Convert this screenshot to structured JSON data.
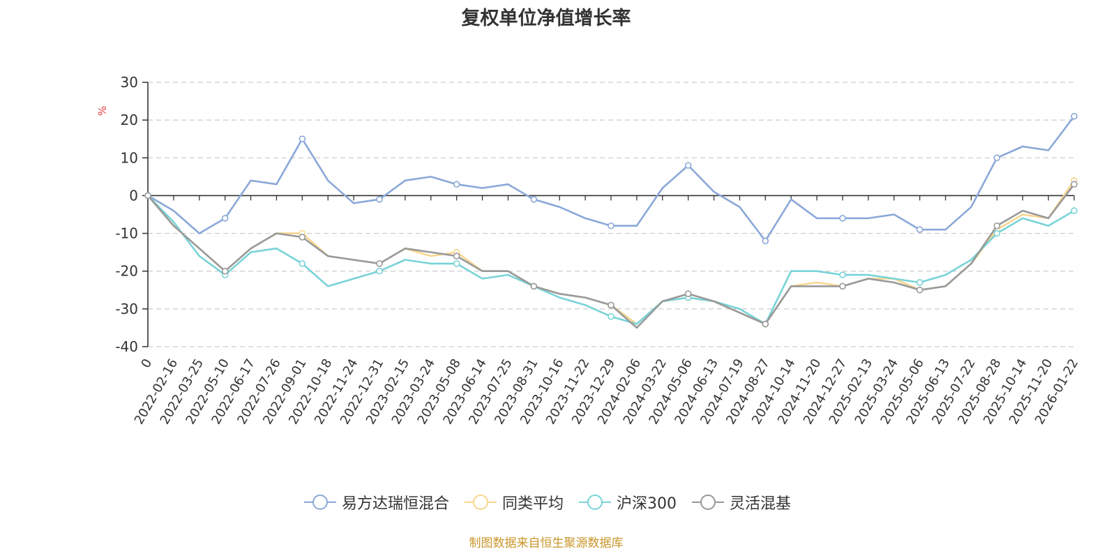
{
  "chart_data": {
    "type": "line",
    "title": "复权单位净值增长率",
    "ylabel": "%",
    "xlabel": "",
    "ylim": [
      -40,
      30
    ],
    "yticks": [
      30,
      20,
      10,
      0,
      -10,
      -20,
      -30,
      -40
    ],
    "categories": [
      "0",
      "2022-02-16",
      "2022-03-25",
      "2022-05-10",
      "2022-06-17",
      "2022-07-26",
      "2022-09-01",
      "2022-10-18",
      "2022-11-24",
      "2022-12-31",
      "2023-02-15",
      "2023-03-24",
      "2023-05-08",
      "2023-06-14",
      "2023-07-25",
      "2023-08-31",
      "2023-10-16",
      "2023-11-22",
      "2023-12-29",
      "2024-02-06",
      "2024-03-22",
      "2024-05-06",
      "2024-06-13",
      "2024-07-19",
      "2024-08-27",
      "2024-10-14",
      "2024-11-20",
      "2024-12-27",
      "2025-02-13",
      "2025-03-24",
      "2025-05-06",
      "2025-06-13",
      "2025-07-22",
      "2025-08-28",
      "2025-10-14",
      "2025-11-20",
      "2026-01-22"
    ],
    "grid": true,
    "legend_position": "bottom",
    "series": [
      {
        "name": "易方达瑞恒混合",
        "color": "#8aa8d8",
        "values": [
          0,
          -4,
          -10,
          -6,
          4,
          3,
          15,
          4,
          -2,
          -1,
          4,
          5,
          3,
          2,
          3,
          -1,
          -3,
          -6,
          -8,
          -8,
          2,
          8,
          1,
          -3,
          -12,
          -1,
          -6,
          -6,
          -6,
          -5,
          -9,
          -9,
          -3,
          10,
          13,
          12,
          21
        ]
      },
      {
        "name": "同类平均",
        "color": "#f9d68e",
        "values": [
          0,
          -8,
          -14,
          -20,
          -14,
          -10,
          -10,
          -16,
          -17,
          -18,
          -14,
          -16,
          -15,
          -20,
          -20,
          -24,
          -26,
          -27,
          -29,
          -34,
          -28,
          -27,
          -28,
          -31,
          -34,
          -24,
          -23,
          -24,
          -22,
          -22,
          -25,
          -24,
          -18,
          -9,
          -5,
          -6,
          4
        ]
      },
      {
        "name": "沪深300",
        "color": "#78d3d8",
        "values": [
          0,
          -7,
          -16,
          -21,
          -15,
          -14,
          -18,
          -24,
          -22,
          -20,
          -17,
          -18,
          -18,
          -22,
          -21,
          -24,
          -27,
          -29,
          -32,
          -34,
          -28,
          -27,
          -28,
          -30,
          -34,
          -20,
          -20,
          -21,
          -21,
          -22,
          -23,
          -21,
          -17,
          -10,
          -6,
          -8,
          -4
        ]
      },
      {
        "name": "灵活混基",
        "color": "#999999",
        "values": [
          0,
          -8,
          -14,
          -20,
          -14,
          -10,
          -11,
          -16,
          -17,
          -18,
          -14,
          -15,
          -16,
          -20,
          -20,
          -24,
          -26,
          -27,
          -29,
          -35,
          -28,
          -26,
          -28,
          -31,
          -34,
          -24,
          -24,
          -24,
          -22,
          -23,
          -25,
          -24,
          -18,
          -8,
          -4,
          -6,
          3
        ]
      }
    ],
    "source": "制图数据来自恒生聚源数据库"
  }
}
